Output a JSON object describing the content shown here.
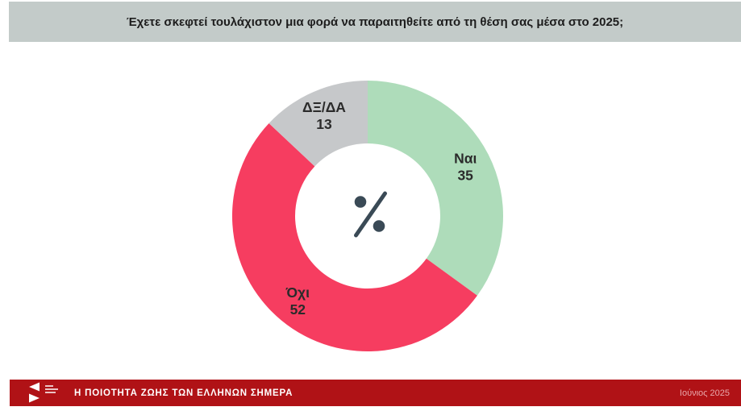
{
  "header": {
    "title": "Έχετε σκεφτεί τουλάχιστον μια φορά να παραιτηθείτε από τη θέση σας μέσα στο 2025;"
  },
  "chart_data": {
    "type": "pie",
    "subtype": "donut",
    "title": "Έχετε σκεφτεί τουλάχιστον μια φορά να παραιτηθείτε από τη θέση σας μέσα στο 2025;",
    "unit": "percent",
    "direction": "clockwise",
    "start_angle_deg": 0,
    "center_symbol": "%",
    "center_symbol_color": "#3a4a56",
    "label_color": "#2b2b2b",
    "hole_color": "#ffffff",
    "legend_position": "none",
    "slices": [
      {
        "id": "yes",
        "label": "Ναι",
        "value": 35,
        "color": "#aedcba"
      },
      {
        "id": "no",
        "label": "Όχι",
        "value": 52,
        "color": "#f63d60"
      },
      {
        "id": "dk-na",
        "label": "ΔΞ/ΔΑ",
        "value": 13,
        "color": "#c6c8ca"
      }
    ]
  },
  "footer": {
    "title": "Η ΠΟΙΟΤΗΤΑ ΖΩΗΣ ΤΩΝ ΕΛΛΗΝΩΝ ΣΗΜΕΡΑ",
    "date": "Ιούνιος 2025",
    "logo": "kapa-research-logo"
  },
  "colors": {
    "page_background": "#ffffff",
    "header_bar": "#c3cbc9",
    "footer_bar": "#b01216",
    "footer_date_text": "#e8a7ab"
  }
}
